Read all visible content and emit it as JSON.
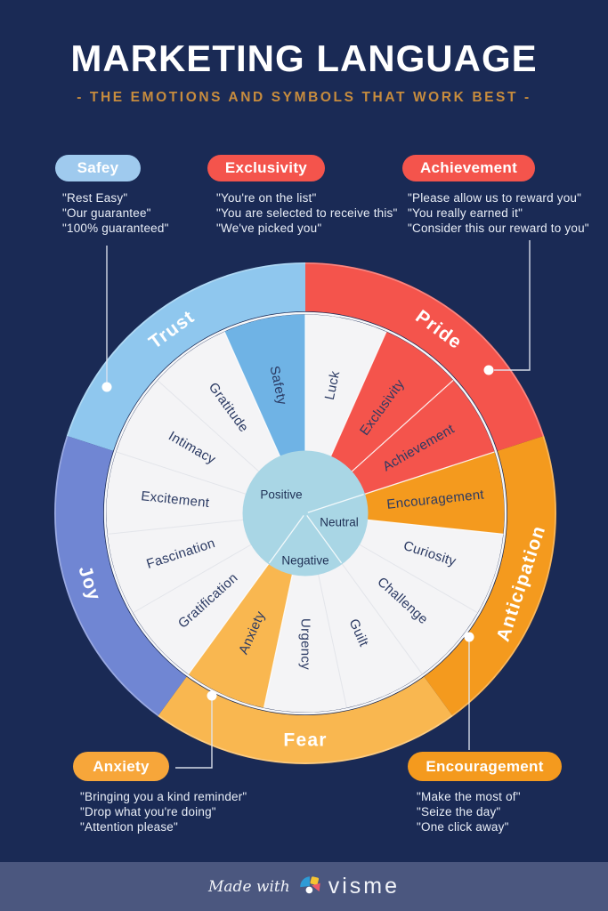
{
  "title": "MARKETING LANGUAGE",
  "subtitle": "- THE EMOTIONS AND SYMBOLS THAT WORK BEST -",
  "callouts": [
    {
      "id": "safey",
      "label": "Safey",
      "pill_color": "#9fcaee",
      "quotes": [
        "\"Rest Easy\"",
        "\"Our guarantee\"",
        "\"100% guaranteed\""
      ]
    },
    {
      "id": "exclusivity",
      "label": "Exclusivity",
      "pill_color": "#f4544c",
      "quotes": [
        "\"You're on the list\"",
        "\"You are selected to receive this\"",
        "\"We've picked you\""
      ]
    },
    {
      "id": "achievement",
      "label": "Achievement",
      "pill_color": "#f4544c",
      "quotes": [
        "\"Please allow us to reward you\"",
        "\"You really earned it\"",
        "\"Consider this our reward to you\""
      ]
    },
    {
      "id": "anxiety",
      "label": "Anxiety",
      "pill_color": "#f7a63a",
      "quotes": [
        "\"Bringing you a kind reminder\"",
        "\"Drop what you're doing\"",
        "\"Attention please\""
      ]
    },
    {
      "id": "encouragement",
      "label": "Encouragement",
      "pill_color": "#f49a1e",
      "quotes": [
        "\"Make the most of\"",
        "\"Seize the day\"",
        "\"One click away\""
      ]
    }
  ],
  "wheel": {
    "center_labels": [
      "Positive",
      "Neutral",
      "Negative"
    ],
    "center_fill": "#a9d6e5",
    "segments": [
      {
        "label": "Luck",
        "fill": "#f4f4f6"
      },
      {
        "label": "Exclusivity",
        "fill": "#f4544c"
      },
      {
        "label": "Achievement",
        "fill": "#f4544c"
      },
      {
        "label": "Encouragement",
        "fill": "#f49a1e"
      },
      {
        "label": "Curiosity",
        "fill": "#f4f4f6"
      },
      {
        "label": "Challenge",
        "fill": "#f4f4f6"
      },
      {
        "label": "Guilt",
        "fill": "#f4f4f6"
      },
      {
        "label": "Urgency",
        "fill": "#f4f4f6"
      },
      {
        "label": "Anxiety",
        "fill": "#f9b750"
      },
      {
        "label": "Gratification",
        "fill": "#f4f4f6"
      },
      {
        "label": "Fascination",
        "fill": "#f4f4f6"
      },
      {
        "label": "Excitement",
        "fill": "#f4f4f6"
      },
      {
        "label": "Intimacy",
        "fill": "#f4f4f6"
      },
      {
        "label": "Gratitude",
        "fill": "#f4f4f6"
      },
      {
        "label": "Safety",
        "fill": "#6fb3e5"
      }
    ],
    "outer_arcs": [
      {
        "label": "Trust",
        "start": 288,
        "end": 360,
        "fill": "#8fc7ee"
      },
      {
        "label": "Pride",
        "start": 0,
        "end": 72,
        "fill": "#f4544c"
      },
      {
        "label": "Anticipation",
        "start": 72,
        "end": 144,
        "fill": "#f49a1e"
      },
      {
        "label": "Fear",
        "start": 144,
        "end": 216,
        "fill": "#f9b750"
      },
      {
        "label": "Joy",
        "start": 216,
        "end": 288,
        "fill": "#7086d3"
      }
    ]
  },
  "footer": {
    "made_with": "Made with",
    "brand": "visme"
  },
  "colors": {
    "background": "#1a2a55",
    "subtitle_gold": "#c78c3e",
    "footer_band": "#4b577f",
    "wedge_text": "#2b3a63",
    "center_text": "#1f3055",
    "leader_line": "#dfe5f0",
    "white_wedge": "#f4f4f6"
  }
}
